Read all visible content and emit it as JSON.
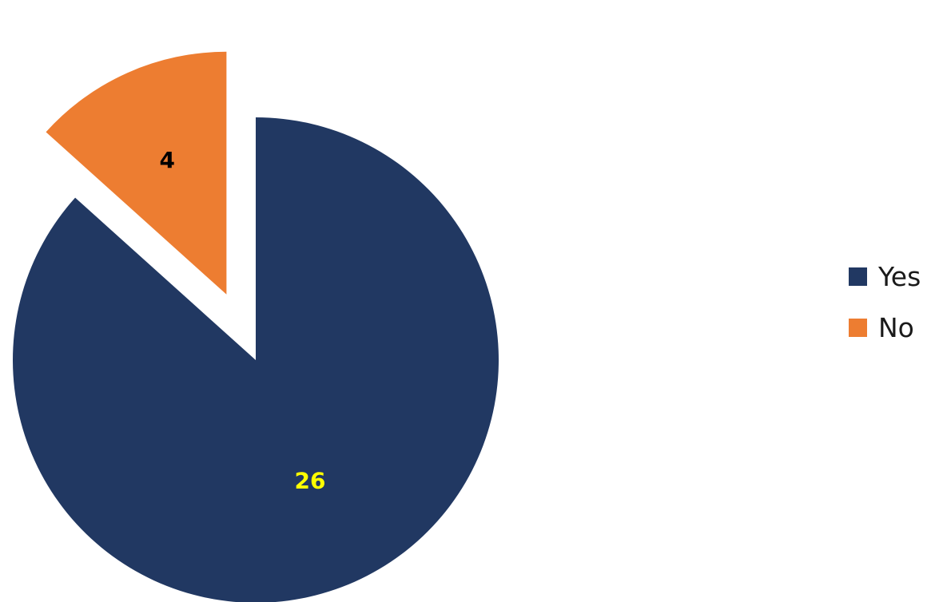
{
  "chart_data": {
    "type": "pie",
    "title": "",
    "slices": [
      {
        "label": "Yes",
        "value": 26,
        "color": "#213862",
        "label_color": "#ffff00"
      },
      {
        "label": "No",
        "value": 4,
        "color": "#ed7d31",
        "label_color": "#000000"
      }
    ],
    "legend_position": "right"
  }
}
